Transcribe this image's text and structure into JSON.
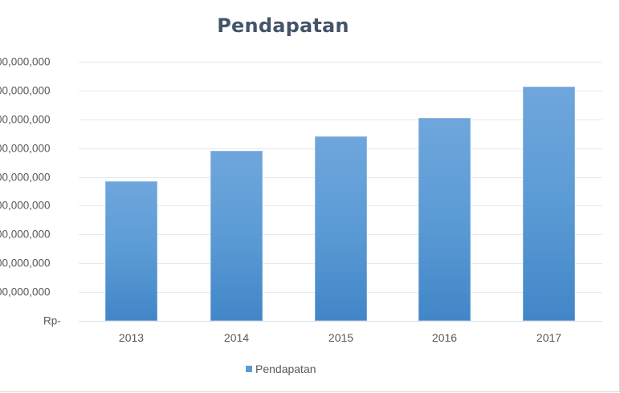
{
  "chart_data": {
    "type": "bar",
    "title": "Pendapatan",
    "xlabel": "",
    "ylabel": "",
    "categories": [
      "2013",
      "2014",
      "2015",
      "2016",
      "2017"
    ],
    "series": [
      {
        "name": "Pendapatan",
        "color": "#5b9bd5",
        "values": [
          485000000,
          592000000,
          641000000,
          705000000,
          813000000
        ]
      }
    ],
    "y_ticks": [
      {
        "value": 0,
        "label": "Rp-"
      },
      {
        "value": 100000000,
        "label": "00,000,000"
      },
      {
        "value": 200000000,
        "label": "00,000,000"
      },
      {
        "value": 300000000,
        "label": "00,000,000"
      },
      {
        "value": 400000000,
        "label": "00,000,000"
      },
      {
        "value": 500000000,
        "label": "00,000,000"
      },
      {
        "value": 600000000,
        "label": "00,000,000"
      },
      {
        "value": 700000000,
        "label": "00,000,000"
      },
      {
        "value": 800000000,
        "label": "00,000,000"
      },
      {
        "value": 900000000,
        "label": "00,000,000"
      }
    ],
    "ylim": [
      0,
      900000000
    ],
    "grid": true,
    "legend_position": "bottom"
  },
  "legend": {
    "label": "Pendapatan"
  }
}
